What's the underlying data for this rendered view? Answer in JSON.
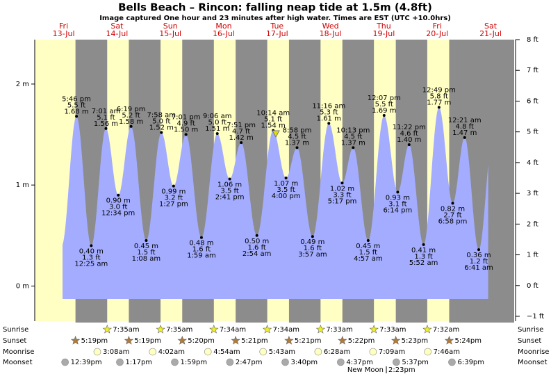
{
  "chart_data": {
    "type": "tide",
    "title": "Bells Beach – Rincon: falling  neap tide at 1.5m (4.8ft)",
    "subtitle": "Image captured One hour and 23 minutes after high water. Times are EST (UTC +10.0hrs)",
    "day_names": [
      "Fri",
      "Sat",
      "Sun",
      "Mon",
      "Tue",
      "Wed",
      "Thu",
      "Fri",
      "Sat"
    ],
    "day_dates": [
      "13-Jul",
      "14-Jul",
      "15-Jul",
      "16-Jul",
      "17-Jul",
      "18-Jul",
      "19-Jul",
      "20-Jul",
      "21-Jul"
    ],
    "x": [
      "5:46 pm",
      "12:25 am",
      "7:01 am",
      "12:34 pm",
      "6:19 pm",
      "1:08 am",
      "7:58 am",
      "1:27 pm",
      "7:01 pm",
      "1:59 am",
      "9:06 am",
      "2:41 pm",
      "7:51 pm",
      "2:54 am",
      "10:14 am",
      "4:00 pm",
      "8:58 pm",
      "3:57 am",
      "11:16 am",
      "5:17 pm",
      "10:13 pm",
      "4:57 am",
      "12:07 pm",
      "6:14 pm",
      "11:22 pm",
      "5:52 am",
      "12:49 pm",
      "6:58 pm",
      "12:21 am",
      "6:41 am"
    ],
    "values": [
      1.68,
      0.4,
      1.56,
      0.9,
      1.58,
      0.45,
      1.52,
      0.99,
      1.5,
      0.48,
      1.51,
      1.06,
      1.42,
      0.5,
      1.54,
      1.07,
      1.37,
      0.49,
      1.61,
      1.02,
      1.37,
      0.45,
      1.69,
      0.93,
      1.4,
      0.41,
      1.77,
      0.82,
      1.47,
      0.36
    ],
    "value_labels": [
      "1.68 m",
      "0.40 m",
      "1.56 m",
      "0.90 m",
      "1.58 m",
      "0.45 m",
      "1.52 m",
      "0.99 m",
      "1.50 m",
      "0.48 m",
      "1.51 m",
      "1.06 m",
      "1.42 m",
      "0.50 m",
      "1.54 m",
      "1.07 m",
      "1.37 m",
      "0.49 m",
      "1.61 m",
      "1.02 m",
      "1.37 m",
      "0.45 m",
      "1.69 m",
      "0.93 m",
      "1.40 m",
      "0.41 m",
      "1.77 m",
      "0.82 m",
      "1.47 m",
      "0.36 m"
    ],
    "value_labels_ft": [
      "5.5 ft",
      "1.3 ft",
      "5.1 ft",
      "3.0 ft",
      "5.2 ft",
      "1.5 ft",
      "5.0 ft",
      "3.2 ft",
      "4.9 ft",
      "1.6 ft",
      "5.0 ft",
      "3.5 ft",
      "4.7 ft",
      "1.6 ft",
      "5.1 ft",
      "3.5 ft",
      "4.5 ft",
      "1.6 ft",
      "5.3 ft",
      "3.3 ft",
      "4.5 ft",
      "1.5 ft",
      "5.5 ft",
      "3.1 ft",
      "4.6 ft",
      "1.3 ft",
      "5.8 ft",
      "2.7 ft",
      "4.8 ft",
      "1.2 ft"
    ],
    "color": "#a3acff",
    "ylim": [
      -0.3,
      2.44
    ],
    "yticks": [
      {
        "value": 0,
        "label": "0 m"
      },
      {
        "value": 1,
        "label": "1 m"
      },
      {
        "value": 2,
        "label": "2 m"
      }
    ],
    "y2lim": [
      -1,
      8
    ],
    "y2ticks": [
      {
        "value": -1,
        "label": "−1 ft"
      },
      {
        "value": 0,
        "label": "0 ft"
      },
      {
        "value": 1,
        "label": "1 ft"
      },
      {
        "value": 2,
        "label": "2 ft"
      },
      {
        "value": 3,
        "label": "3 ft"
      },
      {
        "value": 4,
        "label": "4 ft"
      },
      {
        "value": 5,
        "label": "5 ft"
      },
      {
        "value": 6,
        "label": "6 ft"
      },
      {
        "value": 7,
        "label": "7 ft"
      },
      {
        "value": 8,
        "label": "8 ft"
      }
    ],
    "row_labels": [
      "Sunrise",
      "Sunset",
      "Moonrise",
      "Moonset"
    ],
    "sunrise": [
      "7:35am",
      "7:35am",
      "7:34am",
      "7:34am",
      "7:33am",
      "7:33am",
      "7:32am"
    ],
    "sunset": [
      "5:19pm",
      "5:19pm",
      "5:20pm",
      "5:21pm",
      "5:21pm",
      "5:22pm",
      "5:23pm",
      "5:24pm"
    ],
    "moonrise": [
      "3:08am",
      "4:02am",
      "4:54am",
      "5:43am",
      "6:28am",
      "7:09am",
      "7:46am"
    ],
    "moonset": [
      "12:39pm",
      "1:17pm",
      "1:59pm",
      "2:47pm",
      "3:40pm",
      "4:37pm",
      "5:37pm",
      "6:39pm"
    ],
    "moon_phase": "New Moon",
    "moon_phase_time": "2:23pm"
  }
}
